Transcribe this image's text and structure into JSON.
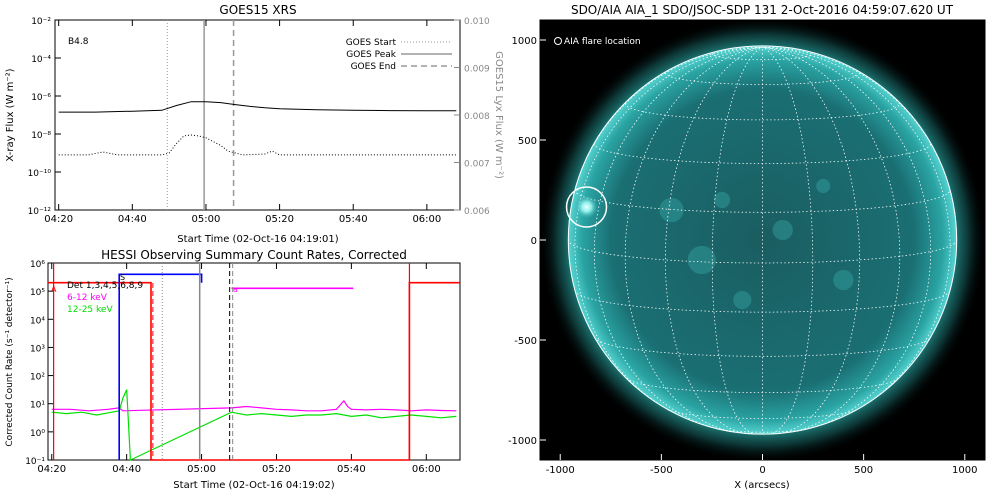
{
  "chart_data": [
    {
      "type": "line",
      "title": "GOES15 XRS",
      "xlabel": "Start Time (02-Oct-16 04:19:01)",
      "ylabel": "X-ray Flux (W m⁻²)",
      "y2label": "GOES15 Lyx Flux (W m⁻²)",
      "class_label": "B4.8",
      "y_scale": "log",
      "ylim": [
        1e-12,
        0.01
      ],
      "y2lim": [
        0.006,
        0.01
      ],
      "x_ticks": [
        "04:20",
        "04:40",
        "05:00",
        "05:20",
        "05:40",
        "06:00"
      ],
      "x_tick_minutes": [
        0,
        20,
        40,
        60,
        80,
        100
      ],
      "xlim_minutes": [
        -1,
        109
      ],
      "y_ticks": [
        "10⁻¹²",
        "10⁻¹⁰",
        "10⁻⁸",
        "10⁻⁶",
        "10⁻⁴",
        "10⁻²"
      ],
      "y2_ticks": [
        "0.006",
        "0.007",
        "0.008",
        "0.009",
        "0.010"
      ],
      "legend": [
        {
          "name": "GOES Start",
          "style": "dotted"
        },
        {
          "name": "GOES Peak",
          "style": "solid"
        },
        {
          "name": "GOES End",
          "style": "dashed"
        }
      ],
      "event_lines_minutes": {
        "start": 29.5,
        "peak": 39.5,
        "end": 47.5
      },
      "series": [
        {
          "name": "GOES long channel",
          "style": "solid",
          "x": [
            0,
            10,
            20,
            28,
            32,
            36,
            40,
            44,
            48,
            52,
            56,
            60,
            70,
            80,
            90,
            100,
            108
          ],
          "log_flux": [
            -6.85,
            -6.85,
            -6.8,
            -6.75,
            -6.5,
            -6.3,
            -6.3,
            -6.35,
            -6.45,
            -6.55,
            -6.62,
            -6.67,
            -6.72,
            -6.75,
            -6.77,
            -6.78,
            -6.78
          ]
        },
        {
          "name": "GOES short channel",
          "style": "dotted",
          "x": [
            0,
            8,
            12,
            16,
            20,
            24,
            28,
            30,
            32,
            34,
            36,
            38,
            40,
            42,
            44,
            46,
            48,
            50,
            56,
            58,
            60,
            64,
            70,
            80,
            90,
            100,
            108
          ],
          "log_flux": [
            -9.1,
            -9.1,
            -8.95,
            -9.1,
            -9.1,
            -9.1,
            -9.1,
            -9.0,
            -8.5,
            -8.1,
            -8.05,
            -8.1,
            -8.2,
            -8.4,
            -8.6,
            -8.9,
            -9.0,
            -9.1,
            -9.05,
            -8.9,
            -9.1,
            -9.1,
            -9.1,
            -9.1,
            -9.1,
            -9.1,
            -9.1
          ]
        }
      ]
    },
    {
      "type": "line",
      "title": "HESSI Observing Summary Count Rates, Corrected",
      "xlabel": "Start Time (02-Oct-16 04:19:02)",
      "ylabel": "Corrected Count Rate (s⁻¹ detector⁻¹)",
      "y_scale": "log",
      "ylim": [
        0.1,
        1000000.0
      ],
      "x_ticks": [
        "04:20",
        "04:40",
        "05:00",
        "05:20",
        "05:40",
        "06:00"
      ],
      "x_tick_minutes": [
        0,
        20,
        40,
        60,
        80,
        100
      ],
      "xlim_minutes": [
        -1,
        109
      ],
      "y_ticks": [
        "10⁻¹",
        "10⁰",
        "10¹",
        "10²",
        "10³",
        "10⁴",
        "10⁵",
        "10⁶"
      ],
      "legend": [
        {
          "name": "Det 1,3,4,5,6,8,9",
          "color": "#000000"
        },
        {
          "name": "6-12 keV",
          "color": "#ff00ff"
        },
        {
          "name": "12-25 keV",
          "color": "#00e000"
        }
      ],
      "markers": {
        "s_label": "S",
        "a_label": "A",
        "b_label": "a"
      },
      "event_lines_minutes": {
        "start": 29.5,
        "peak": 39.5,
        "end": 47.5
      },
      "night_red_lines_minutes": [
        0.5,
        95.5
      ],
      "series": [
        {
          "name": "6-12 keV",
          "color": "#ff00ff",
          "x": [
            0,
            5,
            10,
            15,
            18,
            19,
            48,
            52,
            56,
            60,
            64,
            68,
            72,
            76,
            78,
            79,
            80,
            84,
            88,
            92,
            96,
            100,
            104,
            108
          ],
          "log_rate": [
            0.8,
            0.8,
            0.75,
            0.8,
            0.85,
            0.75,
            0.85,
            0.9,
            0.85,
            0.8,
            0.78,
            0.75,
            0.75,
            0.8,
            1.1,
            0.9,
            0.8,
            0.78,
            0.8,
            0.78,
            0.75,
            0.78,
            0.76,
            0.75
          ]
        },
        {
          "name": "12-25 keV",
          "color": "#00e000",
          "x": [
            0,
            4,
            8,
            12,
            16,
            18,
            19,
            20,
            21,
            48,
            52,
            56,
            60,
            64,
            68,
            72,
            76,
            80,
            84,
            88,
            92,
            96,
            100,
            104,
            108
          ],
          "log_rate": [
            0.7,
            0.65,
            0.7,
            0.6,
            0.7,
            0.75,
            1.2,
            1.5,
            -1,
            0.7,
            0.6,
            0.65,
            0.6,
            0.55,
            0.6,
            0.6,
            0.65,
            0.55,
            0.6,
            0.5,
            0.55,
            0.6,
            0.55,
            0.5,
            0.55
          ]
        },
        {
          "name": "attenuator state",
          "color": "#ff0000",
          "x": [
            -1,
            0.5,
            0.5,
            26.5,
            26.5,
            95.5,
            95.5,
            109
          ],
          "log_rate": [
            5.3,
            5.3,
            5.3,
            5.3,
            -1,
            -1,
            5.3,
            5.3
          ]
        },
        {
          "name": "SAA flag",
          "color": "#0000ff",
          "x": [
            18,
            18,
            40,
            40
          ],
          "log_rate": [
            -1,
            5.6,
            5.6,
            5.3
          ]
        },
        {
          "name": "flare flag",
          "color": "#ff00ff",
          "x": [
            48,
            55,
            79,
            80.5
          ],
          "log_rate": [
            5.1,
            5.1,
            5.1,
            5.1
          ]
        }
      ]
    },
    {
      "type": "image",
      "title": "SDO/AIA AIA_1 SDO/JSOC-SDP 131  2-Oct-2016 04:59:07.620 UT",
      "xlabel": "X (arcsecs)",
      "ylabel": "",
      "legend": [
        {
          "name": "AIA flare location",
          "marker": "circle"
        }
      ],
      "xlim": [
        -1100,
        1100
      ],
      "ylim": [
        -1100,
        1100
      ],
      "x_ticks": [
        -1000,
        -500,
        0,
        500,
        1000
      ],
      "y_ticks": [
        -1000,
        -500,
        0,
        500,
        1000
      ],
      "solar_radius_arcsec": 960,
      "flare_location_arcsec": [
        -870,
        165
      ],
      "colors": {
        "sun": "#1a6f73",
        "limb": "#68e1de",
        "background": "#000000"
      }
    }
  ]
}
